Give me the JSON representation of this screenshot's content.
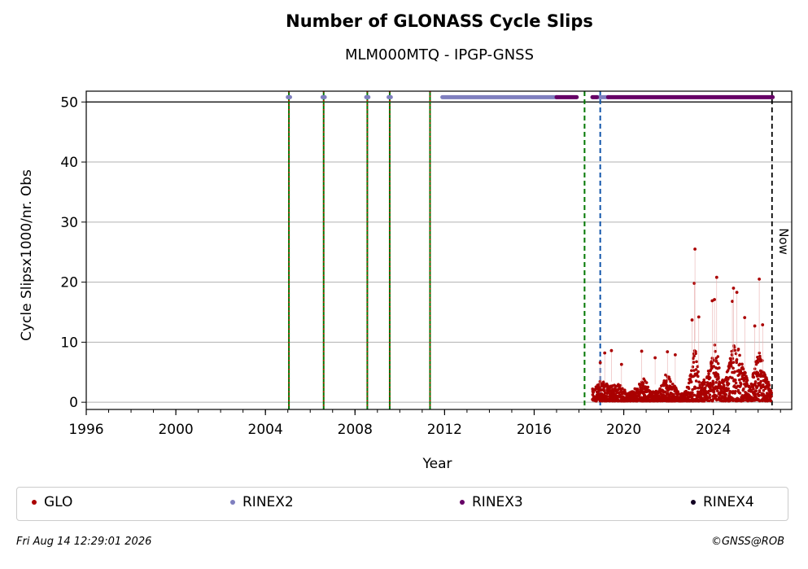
{
  "title": "Number of GLONASS Cycle Slips",
  "subtitle": "MLM000MTQ - IPGP-GNSS",
  "footer": {
    "timestamp": "Fri Aug 14 12:29:01 2026",
    "copyright": "©GNSS@ROB"
  },
  "chart_data": {
    "type": "scatter",
    "xlabel": "Year",
    "ylabel": "Cycle Slipsx1000/nr. Obs",
    "xlim": [
      1996,
      2027.5
    ],
    "ylim": [
      -1.2,
      51.8
    ],
    "x_ticks": [
      1996,
      2000,
      2004,
      2008,
      2012,
      2016,
      2020,
      2024
    ],
    "y_ticks": [
      0,
      10,
      20,
      30,
      40,
      50
    ],
    "grid": "horizontal",
    "legend_position": "bottom",
    "now_label": "Now",
    "now_x": 2026.62,
    "colors": {
      "GLO": "#aa0000",
      "RINEX2": "#7f7fbf",
      "RINEX3": "#660066",
      "RINEX4": "#110022"
    },
    "legend": [
      {
        "name": "GLO",
        "color": "#aa0000"
      },
      {
        "name": "RINEX2",
        "color": "#7f7fbf"
      },
      {
        "name": "RINEX3",
        "color": "#660066"
      },
      {
        "name": "RINEX4",
        "color": "#110022"
      }
    ],
    "vertical_lines": [
      {
        "x": 2005.05,
        "style": "green-red-dotted"
      },
      {
        "x": 2006.6,
        "style": "green-red-dotted"
      },
      {
        "x": 2008.55,
        "style": "green-red-dotted"
      },
      {
        "x": 2009.55,
        "style": "green-red-dotted"
      },
      {
        "x": 2011.35,
        "style": "green-red-dotted"
      },
      {
        "x": 2018.25,
        "style": "green-dashed"
      },
      {
        "x": 2018.95,
        "style": "blue-dashed"
      },
      {
        "x": 2026.62,
        "style": "black-dashed"
      }
    ],
    "format_segments_y": 50.8,
    "format_segments": [
      {
        "format": "RINEX2",
        "from": 2005.0,
        "to": 2005.1
      },
      {
        "format": "RINEX2",
        "from": 2006.55,
        "to": 2006.65
      },
      {
        "format": "RINEX2",
        "from": 2008.5,
        "to": 2008.6
      },
      {
        "format": "RINEX2",
        "from": 2009.5,
        "to": 2009.6
      },
      {
        "format": "RINEX2",
        "from": 2011.9,
        "to": 2017.0
      },
      {
        "format": "RINEX3",
        "from": 2017.0,
        "to": 2017.9
      },
      {
        "format": "RINEX2",
        "from": 2018.8,
        "to": 2019.3
      },
      {
        "format": "RINEX3",
        "from": 2018.6,
        "to": 2018.8
      },
      {
        "format": "RINEX3",
        "from": 2019.3,
        "to": 2026.65
      }
    ],
    "series": [
      {
        "name": "GLO",
        "x_start": 2018.6,
        "x_end": 2026.6,
        "baseline_envelope": [
          [
            2018.6,
            2.0
          ],
          [
            2019.0,
            3.5
          ],
          [
            2019.4,
            2.5
          ],
          [
            2019.8,
            3.0
          ],
          [
            2020.2,
            1.2
          ],
          [
            2020.6,
            2.5
          ],
          [
            2020.9,
            4.5
          ],
          [
            2021.2,
            1.5
          ],
          [
            2021.6,
            2.0
          ],
          [
            2021.9,
            5.0
          ],
          [
            2022.2,
            3.0
          ],
          [
            2022.5,
            1.2
          ],
          [
            2022.8,
            2.0
          ],
          [
            2023.0,
            6.0
          ],
          [
            2023.2,
            9.0
          ],
          [
            2023.4,
            3.0
          ],
          [
            2023.7,
            4.0
          ],
          [
            2024.0,
            10.0
          ],
          [
            2024.2,
            8.0
          ],
          [
            2024.5,
            3.0
          ],
          [
            2024.8,
            8.0
          ],
          [
            2025.0,
            11.0
          ],
          [
            2025.3,
            6.0
          ],
          [
            2025.6,
            3.0
          ],
          [
            2025.9,
            7.0
          ],
          [
            2026.1,
            9.0
          ],
          [
            2026.3,
            5.0
          ],
          [
            2026.6,
            1.5
          ]
        ],
        "peaks": [
          [
            2018.95,
            6.6
          ],
          [
            2019.15,
            8.2
          ],
          [
            2019.45,
            8.6
          ],
          [
            2019.9,
            6.3
          ],
          [
            2020.8,
            8.5
          ],
          [
            2021.4,
            7.4
          ],
          [
            2021.95,
            8.4
          ],
          [
            2022.3,
            7.9
          ],
          [
            2023.05,
            13.7
          ],
          [
            2023.15,
            19.8
          ],
          [
            2023.18,
            25.5
          ],
          [
            2023.35,
            14.2
          ],
          [
            2023.95,
            16.9
          ],
          [
            2024.05,
            17.1
          ],
          [
            2024.15,
            20.8
          ],
          [
            2024.85,
            16.8
          ],
          [
            2024.9,
            19.0
          ],
          [
            2025.05,
            18.3
          ],
          [
            2025.4,
            14.1
          ],
          [
            2025.85,
            12.7
          ],
          [
            2026.05,
            20.5
          ],
          [
            2026.2,
            12.9
          ]
        ]
      }
    ]
  }
}
